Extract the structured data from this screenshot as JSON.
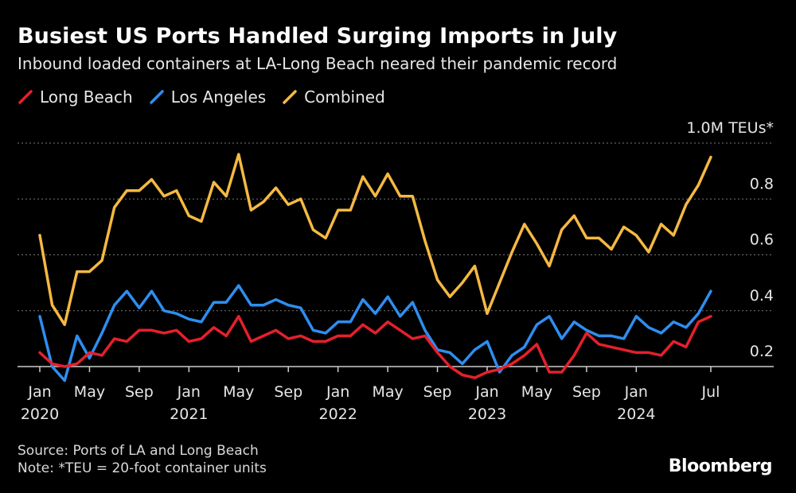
{
  "chart_data": {
    "type": "line",
    "title": "Busiest US Ports Handled Surging Imports in July",
    "subtitle": "Inbound loaded containers at LA-Long Beach neared their pandemic record",
    "unit_label": "1.0M TEUs*",
    "ylim": [
      0.2,
      1.0
    ],
    "yticks": [
      0.2,
      0.4,
      0.6,
      0.8
    ],
    "ytick_labels": [
      "0.2",
      "0.4",
      "0.6",
      "0.8"
    ],
    "xlim": [
      0,
      55
    ],
    "xticks": [
      {
        "index": 0,
        "month": "Jan",
        "year": "2020"
      },
      {
        "index": 4,
        "month": "May",
        "year": ""
      },
      {
        "index": 8,
        "month": "Sep",
        "year": ""
      },
      {
        "index": 12,
        "month": "Jan",
        "year": "2021"
      },
      {
        "index": 16,
        "month": "May",
        "year": ""
      },
      {
        "index": 20,
        "month": "Sep",
        "year": ""
      },
      {
        "index": 24,
        "month": "Jan",
        "year": "2022"
      },
      {
        "index": 28,
        "month": "May",
        "year": ""
      },
      {
        "index": 32,
        "month": "Sep",
        "year": ""
      },
      {
        "index": 36,
        "month": "Jan",
        "year": "2023"
      },
      {
        "index": 40,
        "month": "May",
        "year": ""
      },
      {
        "index": 44,
        "month": "Sep",
        "year": ""
      },
      {
        "index": 48,
        "month": "Jan",
        "year": "2024"
      },
      {
        "index": 54,
        "month": "Jul",
        "year": ""
      }
    ],
    "series": [
      {
        "name": "Long Beach",
        "color": "#e5202b",
        "values": [
          0.25,
          0.21,
          0.2,
          0.21,
          0.25,
          0.24,
          0.3,
          0.29,
          0.33,
          0.33,
          0.32,
          0.33,
          0.29,
          0.3,
          0.34,
          0.31,
          0.38,
          0.29,
          0.31,
          0.33,
          0.3,
          0.31,
          0.29,
          0.29,
          0.31,
          0.31,
          0.35,
          0.32,
          0.36,
          0.33,
          0.3,
          0.31,
          0.25,
          0.2,
          0.17,
          0.16,
          0.18,
          0.19,
          0.21,
          0.24,
          0.28,
          0.18,
          0.18,
          0.24,
          0.32,
          0.28,
          0.27,
          0.26,
          0.25,
          0.25,
          0.24,
          0.29,
          0.27,
          0.36,
          0.38
        ]
      },
      {
        "name": "Los Angeles",
        "color": "#2e8ef0",
        "values": [
          0.38,
          0.2,
          0.15,
          0.31,
          0.23,
          0.32,
          0.42,
          0.47,
          0.41,
          0.47,
          0.4,
          0.39,
          0.37,
          0.36,
          0.43,
          0.43,
          0.49,
          0.42,
          0.42,
          0.44,
          0.42,
          0.41,
          0.33,
          0.32,
          0.36,
          0.36,
          0.44,
          0.39,
          0.45,
          0.38,
          0.43,
          0.33,
          0.26,
          0.25,
          0.21,
          0.26,
          0.29,
          0.18,
          0.24,
          0.27,
          0.35,
          0.38,
          0.3,
          0.36,
          0.33,
          0.31,
          0.31,
          0.3,
          0.38,
          0.34,
          0.32,
          0.36,
          0.34,
          0.39,
          0.47
        ]
      },
      {
        "name": "Combined",
        "color": "#f5b942",
        "values": [
          0.67,
          0.42,
          0.35,
          0.54,
          0.54,
          0.58,
          0.77,
          0.83,
          0.83,
          0.87,
          0.81,
          0.83,
          0.74,
          0.72,
          0.86,
          0.81,
          0.96,
          0.76,
          0.79,
          0.84,
          0.78,
          0.8,
          0.69,
          0.66,
          0.76,
          0.76,
          0.88,
          0.81,
          0.89,
          0.81,
          0.81,
          0.65,
          0.51,
          0.45,
          0.5,
          0.56,
          0.39,
          0.5,
          0.61,
          0.71,
          0.64,
          0.56,
          0.69,
          0.74,
          0.66,
          0.66,
          0.62,
          0.7,
          0.67,
          0.61,
          0.71,
          0.67,
          0.78,
          0.85,
          0.95
        ]
      }
    ],
    "source": "Source: Ports of LA and Long Beach",
    "note": "Note: *TEU = 20-foot container units"
  },
  "branding": {
    "logo_text": "Bloomberg"
  },
  "colors": {
    "background": "#000000",
    "grid": "#777777",
    "axis": "#cccccc",
    "text": "#ffffff"
  }
}
